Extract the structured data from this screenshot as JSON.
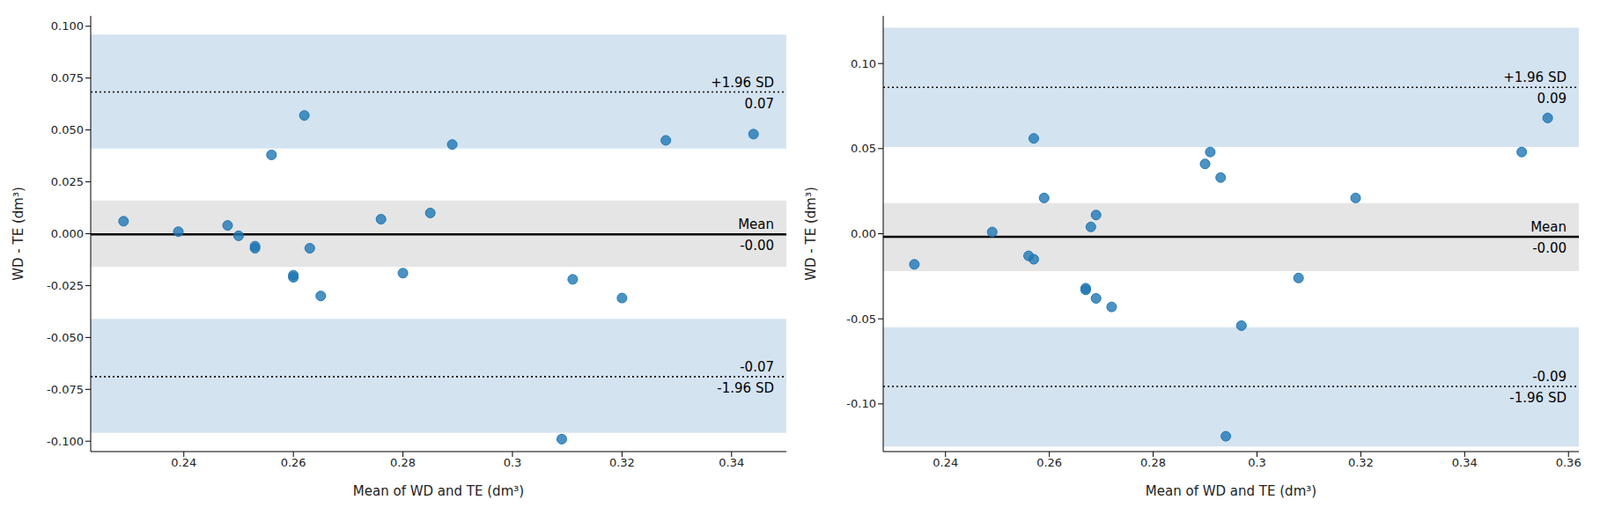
{
  "chart_data": [
    {
      "type": "scatter",
      "x_label": "Mean of WD and TE (dm³)",
      "y_label": "WD - TE (dm³)",
      "xlim": [
        0.223,
        0.35
      ],
      "ylim": [
        -0.105,
        0.105
      ],
      "xticks": [
        0.24,
        0.26,
        0.28,
        0.3,
        0.32,
        0.34
      ],
      "yticks": [
        {
          "value": -0.1,
          "label": "-0.100"
        },
        {
          "value": -0.075,
          "label": "-0.075"
        },
        {
          "value": -0.05,
          "label": "-0.050"
        },
        {
          "value": -0.025,
          "label": "-0.025"
        },
        {
          "value": 0,
          "label": "0.000"
        },
        {
          "value": 0.025,
          "label": "0.025"
        },
        {
          "value": 0.05,
          "label": "0.050"
        },
        {
          "value": 0.075,
          "label": "0.075"
        },
        {
          "value": 0.1,
          "label": "0.100"
        }
      ],
      "color": "#1f77b4",
      "marker": "circle",
      "x": [
        0.229,
        0.239,
        0.248,
        0.25,
        0.253,
        0.253,
        0.256,
        0.26,
        0.26,
        0.262,
        0.263,
        0.265,
        0.276,
        0.28,
        0.285,
        0.289,
        0.309,
        0.311,
        0.32,
        0.328,
        0.344
      ],
      "y": [
        0.006,
        0.001,
        0.004,
        -0.001,
        -0.007,
        -0.006,
        0.038,
        -0.02,
        -0.021,
        0.057,
        -0.007,
        -0.03,
        0.007,
        -0.019,
        0.01,
        0.043,
        -0.099,
        -0.022,
        -0.031,
        0.045,
        0.048
      ],
      "bands": [
        {
          "range": [
            0.041,
            0.096
          ],
          "color": "#d4e3f0"
        },
        {
          "range": [
            -0.016,
            0.016
          ],
          "color": "#e5e5e5"
        },
        {
          "range": [
            -0.096,
            -0.041
          ],
          "color": "#d4e3f0"
        }
      ],
      "reference_lines": [
        {
          "value": 0.0683,
          "label_above": "+1.96 SD",
          "label_below": "0.07",
          "line_style": "dotted"
        },
        {
          "value": -0.0003,
          "label_above": "Mean",
          "label_below": "-0.00",
          "line_style": "solid"
        },
        {
          "value": -0.0689,
          "label_above": "-0.07",
          "label_below": "-1.96 SD",
          "line_style": "dotted"
        }
      ]
    },
    {
      "type": "scatter",
      "x_label": "Mean of WD and TE (dm³)",
      "y_label": "WD - TE (dm³)",
      "xlim": [
        0.228,
        0.362
      ],
      "ylim": [
        -0.128,
        0.128
      ],
      "xticks": [
        0.24,
        0.26,
        0.28,
        0.3,
        0.32,
        0.34,
        0.36
      ],
      "yticks": [
        {
          "value": -0.1,
          "label": "-0.10"
        },
        {
          "value": -0.05,
          "label": "-0.05"
        },
        {
          "value": 0,
          "label": "0.00"
        },
        {
          "value": 0.05,
          "label": "0.05"
        },
        {
          "value": 0.1,
          "label": "0.10"
        }
      ],
      "color": "#1f77b4",
      "marker": "circle",
      "x": [
        0.234,
        0.249,
        0.256,
        0.257,
        0.257,
        0.259,
        0.267,
        0.267,
        0.268,
        0.269,
        0.269,
        0.272,
        0.29,
        0.291,
        0.293,
        0.297,
        0.294,
        0.308,
        0.319,
        0.351,
        0.356
      ],
      "y": [
        -0.018,
        0.001,
        -0.013,
        0.056,
        -0.015,
        0.021,
        -0.033,
        -0.032,
        0.004,
        0.011,
        -0.038,
        -0.043,
        0.041,
        0.048,
        0.033,
        -0.054,
        -0.119,
        -0.026,
        0.021,
        0.048,
        0.068
      ],
      "bands": [
        {
          "range": [
            0.051,
            0.121
          ],
          "color": "#d4e3f0"
        },
        {
          "range": [
            -0.022,
            0.018
          ],
          "color": "#e5e5e5"
        },
        {
          "range": [
            -0.125,
            -0.055
          ],
          "color": "#d4e3f0"
        }
      ],
      "reference_lines": [
        {
          "value": 0.086,
          "label_above": "+1.96 SD",
          "label_below": "0.09",
          "line_style": "dotted"
        },
        {
          "value": -0.0018,
          "label_above": "Mean",
          "label_below": "-0.00",
          "line_style": "solid"
        },
        {
          "value": -0.0897,
          "label_above": "-0.09",
          "label_below": "-1.96 SD",
          "line_style": "dotted"
        }
      ]
    }
  ]
}
